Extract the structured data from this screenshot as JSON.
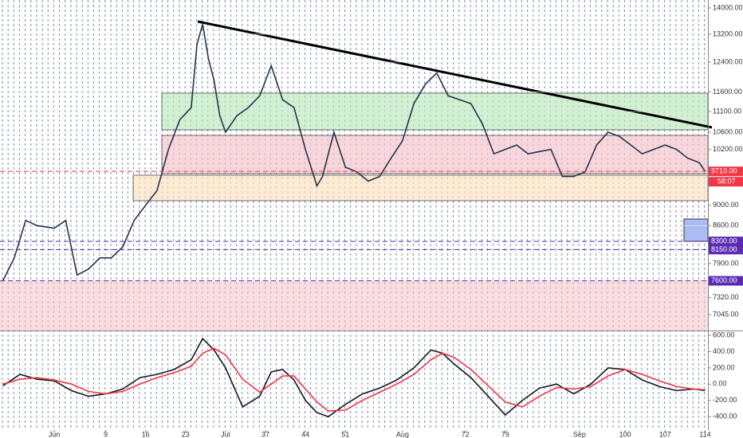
{
  "chart_data": [
    {
      "type": "line",
      "log_scale": true,
      "x": [
        -9,
        -7,
        -5,
        -3,
        0,
        2,
        4,
        6,
        8,
        10,
        12,
        14,
        16,
        18,
        20,
        22,
        24,
        25,
        26,
        27,
        28,
        29,
        30,
        32,
        34,
        36,
        38,
        40,
        42,
        44,
        46,
        47,
        49,
        51,
        53,
        55,
        57,
        59,
        61,
        63,
        65,
        67,
        69,
        71,
        73,
        75,
        77,
        79,
        81,
        83,
        85,
        87,
        89,
        91,
        93,
        95,
        97,
        99,
        101,
        103,
        105,
        107,
        109,
        111,
        113,
        114
      ],
      "series": [
        {
          "color": "#26324a",
          "values": [
            7600,
            8000,
            8700,
            8600,
            8550,
            8700,
            7700,
            7800,
            8000,
            8000,
            8200,
            8700,
            9000,
            9300,
            10200,
            10900,
            11200,
            12900,
            13500,
            12500,
            11900,
            11000,
            10600,
            11000,
            11200,
            11500,
            12300,
            11400,
            11200,
            10200,
            9400,
            9600,
            10600,
            9800,
            9700,
            9500,
            9600,
            10000,
            10400,
            11300,
            11800,
            12100,
            11500,
            11400,
            11300,
            10800,
            10100,
            10200,
            10300,
            10100,
            10150,
            10200,
            9600,
            9600,
            9700,
            10300,
            10600,
            10500,
            10300,
            10100,
            10200,
            10300,
            10200,
            10000,
            9900,
            9710
          ]
        }
      ],
      "xlim": [
        -9.5,
        114.5
      ],
      "xticks": [
        {
          "value": 0,
          "label": "Jun"
        },
        9,
        16,
        23,
        {
          "value": 30,
          "label": "Jul"
        },
        37,
        44,
        51,
        {
          "value": 61,
          "label": "Aug"
        },
        72,
        79,
        {
          "value": 92,
          "label": "Sep"
        },
        100,
        107,
        114
      ],
      "ylim": [
        6800,
        14250
      ],
      "yticks": [
        {
          "value": 14000,
          "label": "14000.00"
        },
        {
          "value": 13200,
          "label": "13200.00"
        },
        {
          "value": 12400,
          "label": "12400.00"
        },
        {
          "value": 11600,
          "label": "11600.00"
        },
        {
          "value": 11100,
          "label": "11100.00"
        },
        {
          "value": 10600,
          "label": "10600.00"
        },
        {
          "value": 10200,
          "label": "10200.00"
        },
        {
          "value": 9000,
          "label": "9000.00"
        },
        {
          "value": 8600,
          "label": "8600.00"
        },
        {
          "value": 7900,
          "label": "7900.00"
        },
        {
          "value": 7320,
          "label": "7320.00"
        },
        {
          "value": 7045,
          "label": "7045.00"
        }
      ],
      "price_labels": [
        {
          "value": 9710,
          "label": "9710.00",
          "color": "#f23645"
        },
        {
          "value": 8300,
          "label": "8300.00",
          "color": "#5b2bb5"
        },
        {
          "value": 8150,
          "label": "8150.00",
          "color": "#5b2bb5"
        },
        {
          "value": 7600,
          "label": "7600.00",
          "color": "#5b2bb5"
        }
      ],
      "countdown": "58:07"
    },
    {
      "type": "line",
      "x": [
        -9,
        -6,
        -3,
        0,
        3,
        6,
        9,
        12,
        15,
        18,
        21,
        24,
        26,
        28,
        30,
        33,
        36,
        38,
        40,
        42,
        44,
        46,
        48,
        51,
        54,
        57,
        60,
        63,
        66,
        68,
        70,
        73,
        76,
        79,
        82,
        85,
        88,
        91,
        94,
        97,
        100,
        103,
        106,
        109,
        112,
        114
      ],
      "series": [
        {
          "color": "#131722",
          "values": [
            -20,
            120,
            60,
            40,
            -80,
            -150,
            -120,
            -60,
            80,
            120,
            180,
            300,
            560,
            420,
            200,
            -280,
            -150,
            150,
            180,
            50,
            -200,
            -350,
            -400,
            -250,
            -120,
            -50,
            50,
            200,
            420,
            380,
            250,
            80,
            -150,
            -380,
            -200,
            -50,
            0,
            -120,
            0,
            200,
            180,
            50,
            -30,
            -80,
            -60,
            -80
          ]
        },
        {
          "color": "#f23645",
          "values": [
            0,
            60,
            80,
            50,
            0,
            -90,
            -120,
            -90,
            0,
            80,
            140,
            220,
            380,
            440,
            360,
            60,
            -100,
            0,
            100,
            100,
            -60,
            -220,
            -330,
            -320,
            -200,
            -100,
            0,
            120,
            300,
            380,
            330,
            180,
            -20,
            -220,
            -280,
            -150,
            -40,
            -60,
            -30,
            100,
            180,
            120,
            40,
            -30,
            -60,
            -70
          ]
        }
      ],
      "xlim": [
        -9.5,
        114.5
      ],
      "ylim": [
        -565,
        640
      ],
      "yticks": [
        {
          "value": 600,
          "label": "600.00"
        },
        {
          "value": 400,
          "label": "400.00"
        },
        {
          "value": 200,
          "label": "200.00"
        },
        {
          "value": 0,
          "label": "0.00"
        },
        {
          "value": -200,
          "label": "-200.00"
        },
        {
          "value": -400,
          "label": "-400.00"
        }
      ]
    }
  ]
}
